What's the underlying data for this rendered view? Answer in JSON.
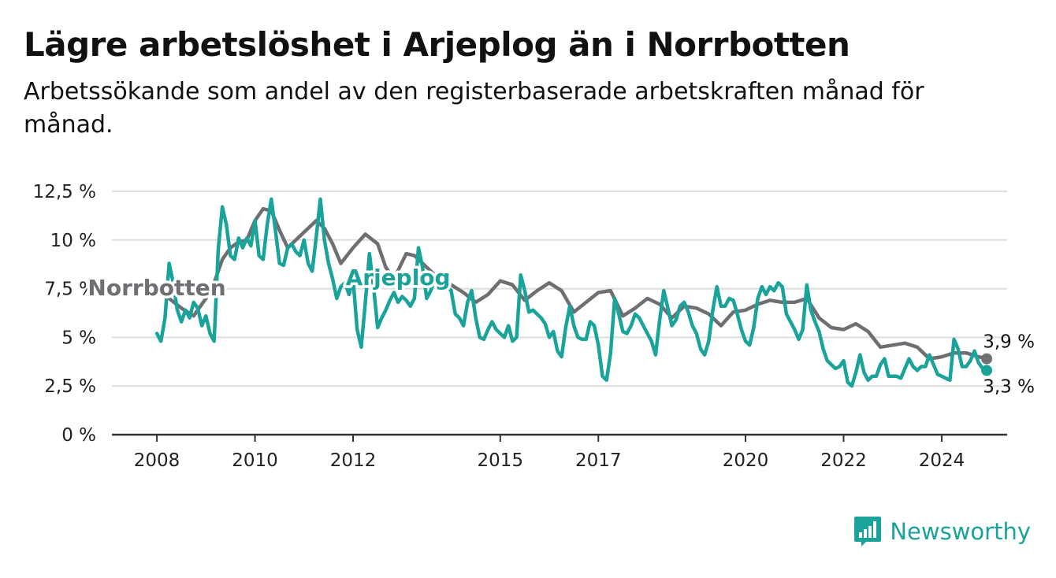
{
  "colors": {
    "arjeplog": "#1aa39a",
    "norrbotten": "#6e6e73",
    "grid": "#dddddd",
    "axis": "#333333"
  },
  "brand": {
    "name": "Newsworthy",
    "icon": "bar-chart-logo-icon"
  },
  "chart_data": {
    "type": "line",
    "title": "Lägre arbetslöshet i Arjeplog än i Norrbotten",
    "subtitle": "Arbetssökande som andel av den registerbaserade arbetskraften månad för månad.",
    "xlabel": "",
    "ylabel": "",
    "ylim": [
      0,
      12.5
    ],
    "xlim": [
      "2007-02",
      "2025-05"
    ],
    "grid": true,
    "legend": "inline",
    "y_ticks": [
      {
        "value": 0,
        "label": "0 %"
      },
      {
        "value": 2.5,
        "label": "2,5 %"
      },
      {
        "value": 5,
        "label": "5 %"
      },
      {
        "value": 7.5,
        "label": "7,5 %"
      },
      {
        "value": 10,
        "label": "10 %"
      },
      {
        "value": 12.5,
        "label": "12,5 %"
      }
    ],
    "x_ticks": [
      {
        "date": "2008-01",
        "label": "2008"
      },
      {
        "date": "2010-01",
        "label": "2010"
      },
      {
        "date": "2012-01",
        "label": "2012"
      },
      {
        "date": "2015-01",
        "label": "2015"
      },
      {
        "date": "2017-01",
        "label": "2017"
      },
      {
        "date": "2020-01",
        "label": "2020"
      },
      {
        "date": "2022-01",
        "label": "2022"
      },
      {
        "date": "2024-01",
        "label": "2024"
      }
    ],
    "series": [
      {
        "name": "Norrbotten",
        "color": "#6e6e73",
        "label_at": "2018-08",
        "end_label": "3,9 %",
        "points": [
          [
            "2008-01",
            7.4
          ],
          [
            "2008-04",
            7.0
          ],
          [
            "2008-07",
            6.5
          ],
          [
            "2008-10",
            6.1
          ],
          [
            "2009-01",
            7.0
          ],
          [
            "2009-03",
            7.8
          ],
          [
            "2009-05",
            9.0
          ],
          [
            "2009-07",
            9.6
          ],
          [
            "2009-09",
            9.9
          ],
          [
            "2009-11",
            10.0
          ],
          [
            "2010-01",
            11.0
          ],
          [
            "2010-03",
            11.6
          ],
          [
            "2010-05",
            11.5
          ],
          [
            "2010-07",
            10.5
          ],
          [
            "2010-09",
            9.6
          ],
          [
            "2010-11",
            10.0
          ],
          [
            "2011-01",
            10.4
          ],
          [
            "2011-04",
            11.0
          ],
          [
            "2011-06",
            10.6
          ],
          [
            "2011-08",
            9.8
          ],
          [
            "2011-10",
            8.8
          ],
          [
            "2012-01",
            9.6
          ],
          [
            "2012-04",
            10.3
          ],
          [
            "2012-07",
            9.8
          ],
          [
            "2012-09",
            8.6
          ],
          [
            "2012-11",
            8.0
          ],
          [
            "2013-02",
            9.3
          ],
          [
            "2013-04",
            9.2
          ],
          [
            "2013-07",
            8.6
          ],
          [
            "2013-10",
            8.0
          ],
          [
            "2014-01",
            7.7
          ],
          [
            "2014-04",
            7.3
          ],
          [
            "2014-07",
            6.8
          ],
          [
            "2014-10",
            7.2
          ],
          [
            "2015-01",
            7.9
          ],
          [
            "2015-04",
            7.7
          ],
          [
            "2015-07",
            6.9
          ],
          [
            "2015-10",
            7.4
          ],
          [
            "2016-01",
            7.8
          ],
          [
            "2016-04",
            7.4
          ],
          [
            "2016-07",
            6.3
          ],
          [
            "2016-10",
            6.8
          ],
          [
            "2017-01",
            7.3
          ],
          [
            "2017-04",
            7.4
          ],
          [
            "2017-07",
            6.1
          ],
          [
            "2017-10",
            6.5
          ],
          [
            "2018-01",
            7.0
          ],
          [
            "2018-04",
            6.7
          ],
          [
            "2018-07",
            6.0
          ],
          [
            "2018-10",
            6.6
          ],
          [
            "2019-01",
            6.5
          ],
          [
            "2019-04",
            6.2
          ],
          [
            "2019-07",
            5.6
          ],
          [
            "2019-10",
            6.3
          ],
          [
            "2020-01",
            6.4
          ],
          [
            "2020-04",
            6.7
          ],
          [
            "2020-07",
            6.9
          ],
          [
            "2020-10",
            6.8
          ],
          [
            "2021-01",
            6.8
          ],
          [
            "2021-04",
            7.0
          ],
          [
            "2021-07",
            6.0
          ],
          [
            "2021-10",
            5.5
          ],
          [
            "2022-01",
            5.4
          ],
          [
            "2022-04",
            5.7
          ],
          [
            "2022-07",
            5.3
          ],
          [
            "2022-10",
            4.5
          ],
          [
            "2023-01",
            4.6
          ],
          [
            "2023-04",
            4.7
          ],
          [
            "2023-07",
            4.5
          ],
          [
            "2023-10",
            3.9
          ],
          [
            "2024-01",
            4.0
          ],
          [
            "2024-04",
            4.2
          ],
          [
            "2024-07",
            4.2
          ],
          [
            "2024-10",
            4.0
          ],
          [
            "2024-12",
            3.9
          ]
        ]
      },
      {
        "name": "Arjeplog",
        "color": "#1aa39a",
        "label_at": "2012-12",
        "end_label": "3,3 %",
        "points": [
          [
            "2008-01",
            5.2
          ],
          [
            "2008-02",
            4.8
          ],
          [
            "2008-03",
            6.0
          ],
          [
            "2008-04",
            8.8
          ],
          [
            "2008-05",
            7.8
          ],
          [
            "2008-06",
            6.4
          ],
          [
            "2008-07",
            5.8
          ],
          [
            "2008-08",
            6.4
          ],
          [
            "2008-09",
            6.0
          ],
          [
            "2008-10",
            6.8
          ],
          [
            "2008-11",
            6.5
          ],
          [
            "2008-12",
            5.6
          ],
          [
            "2009-01",
            6.1
          ],
          [
            "2009-02",
            5.2
          ],
          [
            "2009-03",
            4.8
          ],
          [
            "2009-04",
            9.5
          ],
          [
            "2009-05",
            11.7
          ],
          [
            "2009-06",
            10.8
          ],
          [
            "2009-07",
            9.2
          ],
          [
            "2009-08",
            9.0
          ],
          [
            "2009-09",
            10.1
          ],
          [
            "2009-10",
            9.6
          ],
          [
            "2009-11",
            10.1
          ],
          [
            "2009-12",
            9.7
          ],
          [
            "2010-01",
            11.0
          ],
          [
            "2010-02",
            9.2
          ],
          [
            "2010-03",
            9.0
          ],
          [
            "2010-04",
            10.8
          ],
          [
            "2010-05",
            12.1
          ],
          [
            "2010-06",
            10.5
          ],
          [
            "2010-07",
            8.8
          ],
          [
            "2010-08",
            8.7
          ],
          [
            "2010-09",
            9.6
          ],
          [
            "2010-10",
            9.8
          ],
          [
            "2010-11",
            9.4
          ],
          [
            "2010-12",
            9.2
          ],
          [
            "2011-01",
            10.0
          ],
          [
            "2011-02",
            8.8
          ],
          [
            "2011-03",
            8.4
          ],
          [
            "2011-04",
            10.2
          ],
          [
            "2011-05",
            12.1
          ],
          [
            "2011-06",
            10.0
          ],
          [
            "2011-07",
            8.8
          ],
          [
            "2011-08",
            8.0
          ],
          [
            "2011-09",
            7.0
          ],
          [
            "2011-10",
            7.6
          ],
          [
            "2011-11",
            7.8
          ],
          [
            "2011-12",
            7.2
          ],
          [
            "2012-01",
            8.0
          ],
          [
            "2012-02",
            5.4
          ],
          [
            "2012-03",
            4.5
          ],
          [
            "2012-04",
            6.8
          ],
          [
            "2012-05",
            9.3
          ],
          [
            "2012-06",
            7.6
          ],
          [
            "2012-07",
            5.5
          ],
          [
            "2012-08",
            6.0
          ],
          [
            "2012-09",
            6.4
          ],
          [
            "2012-10",
            6.9
          ],
          [
            "2012-11",
            7.3
          ],
          [
            "2012-12",
            6.8
          ],
          [
            "2013-01",
            7.1
          ],
          [
            "2013-02",
            6.9
          ],
          [
            "2013-03",
            6.6
          ],
          [
            "2013-04",
            7.0
          ],
          [
            "2013-05",
            9.6
          ],
          [
            "2013-06",
            8.6
          ],
          [
            "2013-07",
            7.0
          ],
          [
            "2013-08",
            7.4
          ],
          [
            "2013-09",
            8.0
          ],
          [
            "2013-10",
            8.3
          ],
          [
            "2013-11",
            8.0
          ],
          [
            "2013-12",
            7.6
          ],
          [
            "2014-01",
            7.4
          ],
          [
            "2014-02",
            6.2
          ],
          [
            "2014-03",
            6.0
          ],
          [
            "2014-04",
            5.6
          ],
          [
            "2014-05",
            6.8
          ],
          [
            "2014-06",
            7.4
          ],
          [
            "2014-07",
            6.0
          ],
          [
            "2014-08",
            5.0
          ],
          [
            "2014-09",
            4.9
          ],
          [
            "2014-10",
            5.4
          ],
          [
            "2014-11",
            5.8
          ],
          [
            "2014-12",
            5.4
          ],
          [
            "2015-01",
            5.2
          ],
          [
            "2015-02",
            5.0
          ],
          [
            "2015-03",
            5.6
          ],
          [
            "2015-04",
            4.8
          ],
          [
            "2015-05",
            5.0
          ],
          [
            "2015-06",
            8.2
          ],
          [
            "2015-07",
            7.4
          ],
          [
            "2015-08",
            6.3
          ],
          [
            "2015-09",
            6.4
          ],
          [
            "2015-10",
            6.2
          ],
          [
            "2015-11",
            6.0
          ],
          [
            "2015-12",
            5.7
          ],
          [
            "2016-01",
            5.0
          ],
          [
            "2016-02",
            5.3
          ],
          [
            "2016-03",
            4.3
          ],
          [
            "2016-04",
            4.0
          ],
          [
            "2016-05",
            5.5
          ],
          [
            "2016-06",
            6.6
          ],
          [
            "2016-07",
            5.6
          ],
          [
            "2016-08",
            5.0
          ],
          [
            "2016-09",
            4.9
          ],
          [
            "2016-10",
            4.9
          ],
          [
            "2016-11",
            5.8
          ],
          [
            "2016-12",
            5.6
          ],
          [
            "2017-01",
            4.6
          ],
          [
            "2017-02",
            3.0
          ],
          [
            "2017-03",
            2.8
          ],
          [
            "2017-04",
            4.2
          ],
          [
            "2017-05",
            7.0
          ],
          [
            "2017-06",
            6.2
          ],
          [
            "2017-07",
            5.3
          ],
          [
            "2017-08",
            5.2
          ],
          [
            "2017-09",
            5.6
          ],
          [
            "2017-10",
            6.2
          ],
          [
            "2017-11",
            6.0
          ],
          [
            "2017-12",
            5.6
          ],
          [
            "2018-01",
            5.2
          ],
          [
            "2018-02",
            4.8
          ],
          [
            "2018-03",
            4.1
          ],
          [
            "2018-04",
            5.9
          ],
          [
            "2018-05",
            7.4
          ],
          [
            "2018-06",
            6.5
          ],
          [
            "2018-07",
            5.6
          ],
          [
            "2018-08",
            5.9
          ],
          [
            "2018-09",
            6.6
          ],
          [
            "2018-10",
            6.8
          ],
          [
            "2018-11",
            6.3
          ],
          [
            "2018-12",
            5.6
          ],
          [
            "2019-01",
            5.2
          ],
          [
            "2019-02",
            4.4
          ],
          [
            "2019-03",
            4.1
          ],
          [
            "2019-04",
            4.8
          ],
          [
            "2019-05",
            6.4
          ],
          [
            "2019-06",
            7.6
          ],
          [
            "2019-07",
            6.6
          ],
          [
            "2019-08",
            6.6
          ],
          [
            "2019-09",
            7.0
          ],
          [
            "2019-10",
            6.9
          ],
          [
            "2019-11",
            6.2
          ],
          [
            "2019-12",
            5.4
          ],
          [
            "2020-01",
            4.8
          ],
          [
            "2020-02",
            4.6
          ],
          [
            "2020-03",
            5.5
          ],
          [
            "2020-04",
            7.0
          ],
          [
            "2020-05",
            7.6
          ],
          [
            "2020-06",
            7.2
          ],
          [
            "2020-07",
            7.6
          ],
          [
            "2020-08",
            7.4
          ],
          [
            "2020-09",
            7.8
          ],
          [
            "2020-10",
            7.6
          ],
          [
            "2020-11",
            6.2
          ],
          [
            "2020-12",
            5.8
          ],
          [
            "2021-01",
            5.4
          ],
          [
            "2021-02",
            4.9
          ],
          [
            "2021-03",
            5.4
          ],
          [
            "2021-04",
            7.7
          ],
          [
            "2021-05",
            6.4
          ],
          [
            "2021-06",
            5.8
          ],
          [
            "2021-07",
            5.3
          ],
          [
            "2021-08",
            4.4
          ],
          [
            "2021-09",
            3.8
          ],
          [
            "2021-10",
            3.6
          ],
          [
            "2021-11",
            3.4
          ],
          [
            "2021-12",
            3.5
          ],
          [
            "2022-01",
            3.8
          ],
          [
            "2022-02",
            2.7
          ],
          [
            "2022-03",
            2.5
          ],
          [
            "2022-04",
            3.2
          ],
          [
            "2022-05",
            4.1
          ],
          [
            "2022-06",
            3.2
          ],
          [
            "2022-07",
            2.8
          ],
          [
            "2022-08",
            3.0
          ],
          [
            "2022-09",
            3.0
          ],
          [
            "2022-10",
            3.6
          ],
          [
            "2022-11",
            3.9
          ],
          [
            "2022-12",
            3.0
          ],
          [
            "2023-01",
            3.0
          ],
          [
            "2023-02",
            3.0
          ],
          [
            "2023-03",
            2.9
          ],
          [
            "2023-04",
            3.4
          ],
          [
            "2023-05",
            3.9
          ],
          [
            "2023-06",
            3.5
          ],
          [
            "2023-07",
            3.3
          ],
          [
            "2023-08",
            3.5
          ],
          [
            "2023-09",
            3.5
          ],
          [
            "2023-10",
            4.1
          ],
          [
            "2023-11",
            3.6
          ],
          [
            "2023-12",
            3.1
          ],
          [
            "2024-01",
            3.0
          ],
          [
            "2024-02",
            2.9
          ],
          [
            "2024-03",
            2.8
          ],
          [
            "2024-04",
            4.9
          ],
          [
            "2024-05",
            4.4
          ],
          [
            "2024-06",
            3.5
          ],
          [
            "2024-07",
            3.5
          ],
          [
            "2024-08",
            3.8
          ],
          [
            "2024-09",
            4.3
          ],
          [
            "2024-10",
            3.7
          ],
          [
            "2024-11",
            3.4
          ],
          [
            "2024-12",
            3.3
          ]
        ]
      }
    ]
  }
}
